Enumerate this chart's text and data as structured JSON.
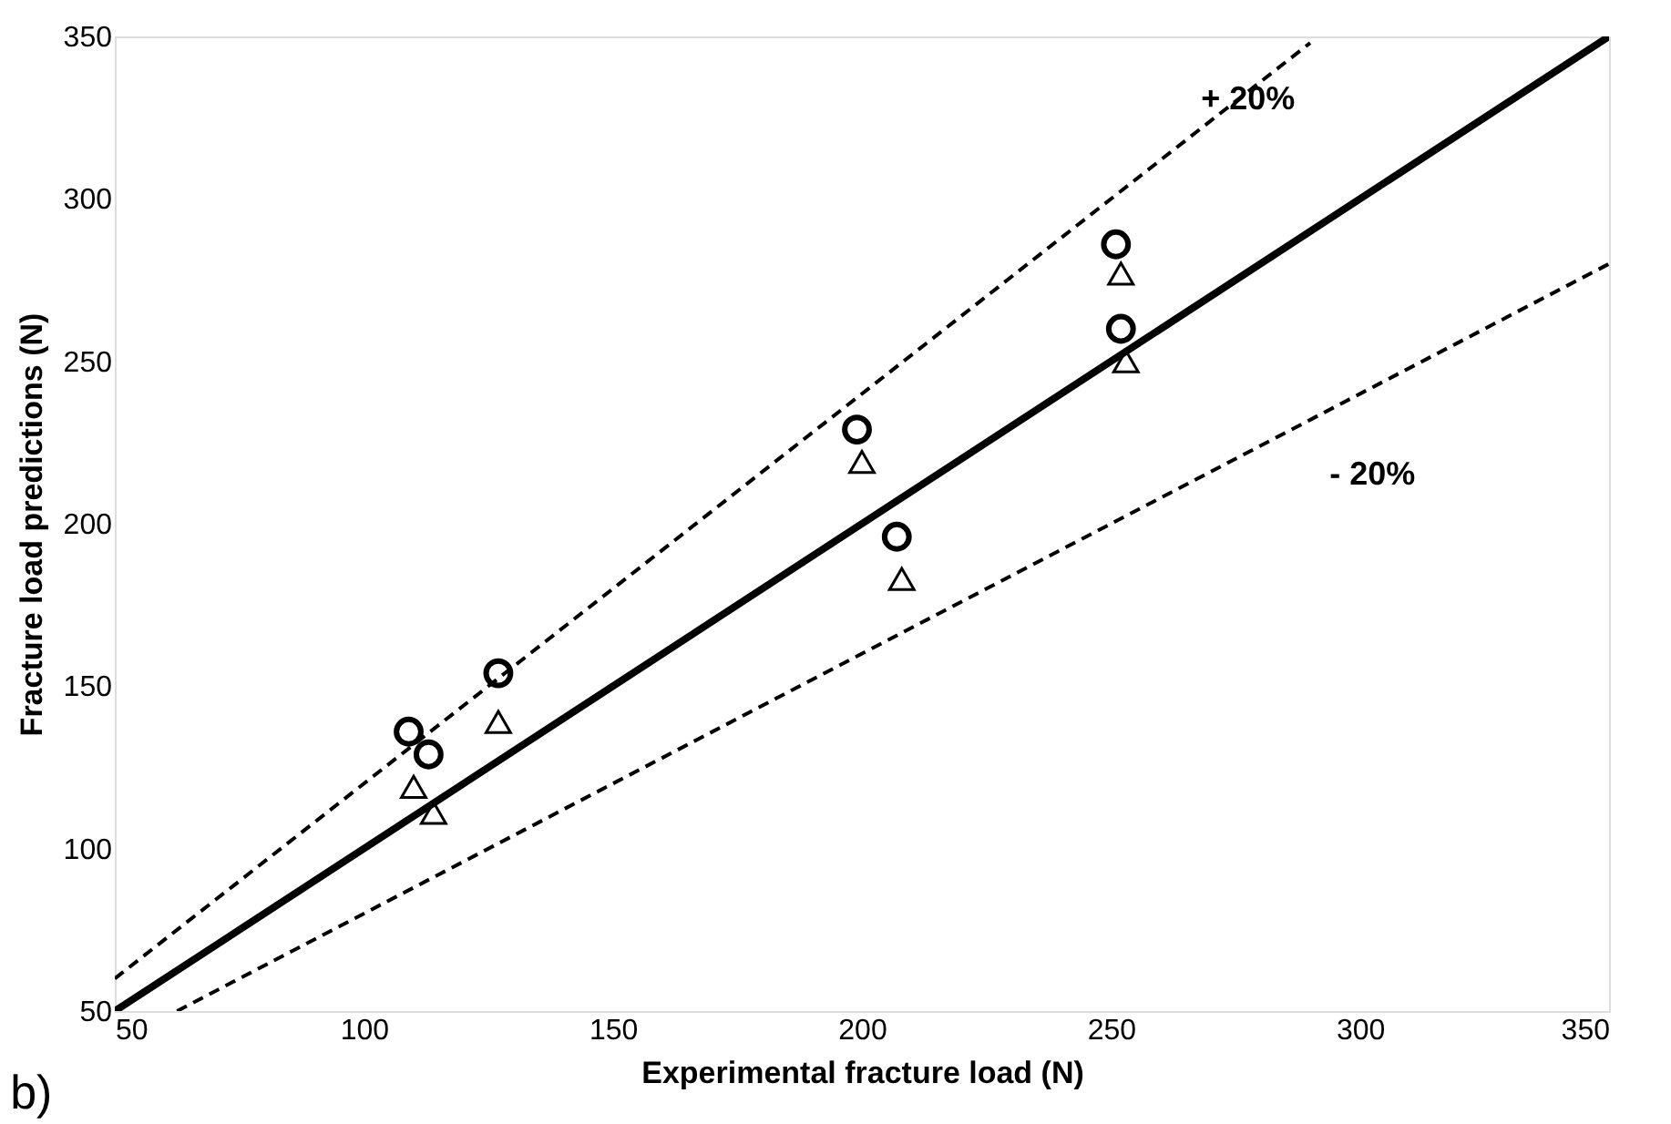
{
  "chart_data": {
    "type": "scatter",
    "xlabel": "Experimental fracture load (N)",
    "ylabel": "Fracture load predictions (N)",
    "xlim": [
      50,
      350
    ],
    "ylim": [
      50,
      350
    ],
    "xticks": [
      50,
      100,
      150,
      200,
      250,
      300,
      350
    ],
    "yticks": [
      50,
      100,
      150,
      200,
      250,
      300,
      350
    ],
    "grid": false,
    "series": [
      {
        "type": "line",
        "color": "#000000",
        "line_style": "solid",
        "marker": "none",
        "x": [
          50,
          350
        ],
        "values": [
          50,
          350
        ]
      },
      {
        "type": "line",
        "color": "#000000",
        "line_style": "dashed",
        "marker": "none",
        "x": [
          50,
          290
        ],
        "values": [
          60,
          348
        ]
      },
      {
        "type": "line",
        "color": "#000000",
        "line_style": "dashed",
        "marker": "none",
        "x": [
          62.5,
          350
        ],
        "values": [
          50,
          280
        ]
      },
      {
        "color": "#000000",
        "marker": "circle",
        "x": [
          109,
          113,
          127,
          199,
          207,
          251,
          252
        ],
        "values": [
          136,
          129,
          154,
          229,
          196,
          286,
          260
        ]
      },
      {
        "color": "#000000",
        "marker": "triangle",
        "x": [
          110,
          114,
          127,
          200,
          208,
          252,
          253
        ],
        "values": [
          119,
          111,
          139,
          219,
          183,
          277,
          250
        ]
      }
    ],
    "annotations": [
      "+ 20%",
      "- 20%",
      "b)"
    ]
  }
}
